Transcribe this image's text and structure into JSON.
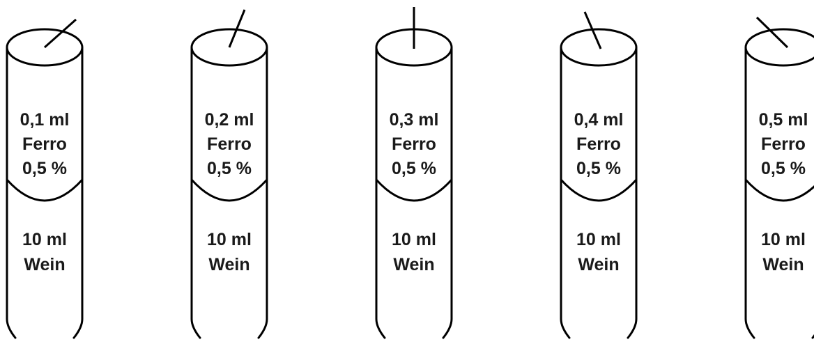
{
  "tubes": [
    {
      "top": [
        "0,1 ml",
        "Ferro",
        "0,5 %"
      ],
      "bottom": [
        "10 ml",
        "Wein"
      ]
    },
    {
      "top": [
        "0,2 ml",
        "Ferro",
        "0,5 %"
      ],
      "bottom": [
        "10 ml",
        "Wein"
      ]
    },
    {
      "top": [
        "0,3 ml",
        "Ferro",
        "0,5 %"
      ],
      "bottom": [
        "10 ml",
        "Wein"
      ]
    },
    {
      "top": [
        "0,4 ml",
        "Ferro",
        "0,5 %"
      ],
      "bottom": [
        "10 ml",
        "Wein"
      ]
    },
    {
      "top": [
        "0,5 ml",
        "Ferro",
        "0,5 %"
      ],
      "bottom": [
        "10 ml",
        "Wein"
      ]
    }
  ]
}
